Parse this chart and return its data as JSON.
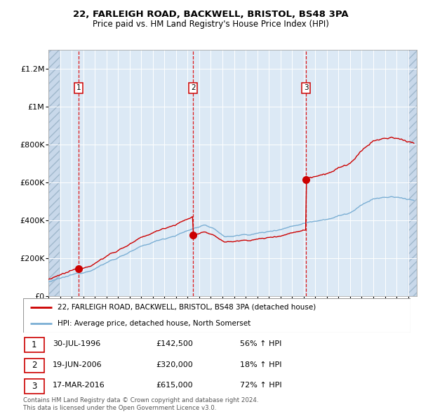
{
  "title1": "22, FARLEIGH ROAD, BACKWELL, BRISTOL, BS48 3PA",
  "title2": "Price paid vs. HM Land Registry's House Price Index (HPI)",
  "line1_label": "22, FARLEIGH ROAD, BACKWELL, BRISTOL, BS48 3PA (detached house)",
  "line2_label": "HPI: Average price, detached house, North Somerset",
  "line1_color": "#cc0000",
  "line2_color": "#7bafd4",
  "sale1_date": 1996.58,
  "sale1_price": 142500,
  "sale1_label": "1",
  "sale1_text": "30-JUL-1996",
  "sale1_amount": "£142,500",
  "sale1_hpi": "56% ↑ HPI",
  "sale2_date": 2006.47,
  "sale2_price": 320000,
  "sale2_label": "2",
  "sale2_text": "19-JUN-2006",
  "sale2_amount": "£320,000",
  "sale2_hpi": "18% ↑ HPI",
  "sale3_date": 2016.21,
  "sale3_price": 615000,
  "sale3_label": "3",
  "sale3_text": "17-MAR-2016",
  "sale3_amount": "£615,000",
  "sale3_hpi": "72% ↑ HPI",
  "xmin": 1994.0,
  "xmax": 2025.75,
  "ymin": 0,
  "ymax": 1300000,
  "yticks": [
    0,
    200000,
    400000,
    600000,
    800000,
    1000000,
    1200000
  ],
  "ytick_labels": [
    "£0",
    "£200K",
    "£400K",
    "£600K",
    "£800K",
    "£1M",
    "£1.2M"
  ],
  "plot_bg_color": "#dce9f5",
  "hatch_color": "#c8d8ea",
  "grid_color": "#ffffff",
  "footer": "Contains HM Land Registry data © Crown copyright and database right 2024.\nThis data is licensed under the Open Government Licence v3.0.",
  "fig_bg": "#ffffff"
}
